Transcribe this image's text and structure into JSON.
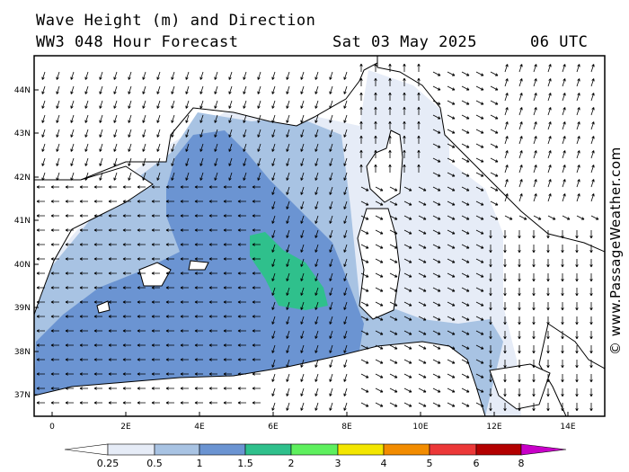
{
  "header": {
    "title": "Wave Height (m) and Direction",
    "model": "WW3 048 Hour Forecast",
    "date": "Sat 03 May 2025",
    "time": "06 UTC"
  },
  "map": {
    "lat_labels": [
      "44N",
      "43N",
      "42N",
      "41N",
      "40N",
      "39N",
      "38N",
      "37N"
    ],
    "lon_labels": [
      "0",
      "2E",
      "4E",
      "6E",
      "8E",
      "10E",
      "12E",
      "14E"
    ]
  },
  "legend": {
    "labels": [
      "0.25",
      "0.5",
      "1",
      "1.5",
      "2",
      "3",
      "4",
      "5",
      "6",
      "8"
    ],
    "colors": [
      "#e6ecf7",
      "#a8c3e3",
      "#6b94d2",
      "#2fc08c",
      "#5ef05e",
      "#f3e600",
      "#f28c00",
      "#ec3838",
      "#b30000",
      "#c800c8"
    ]
  },
  "credit": "© www.PassageWeather.com"
}
